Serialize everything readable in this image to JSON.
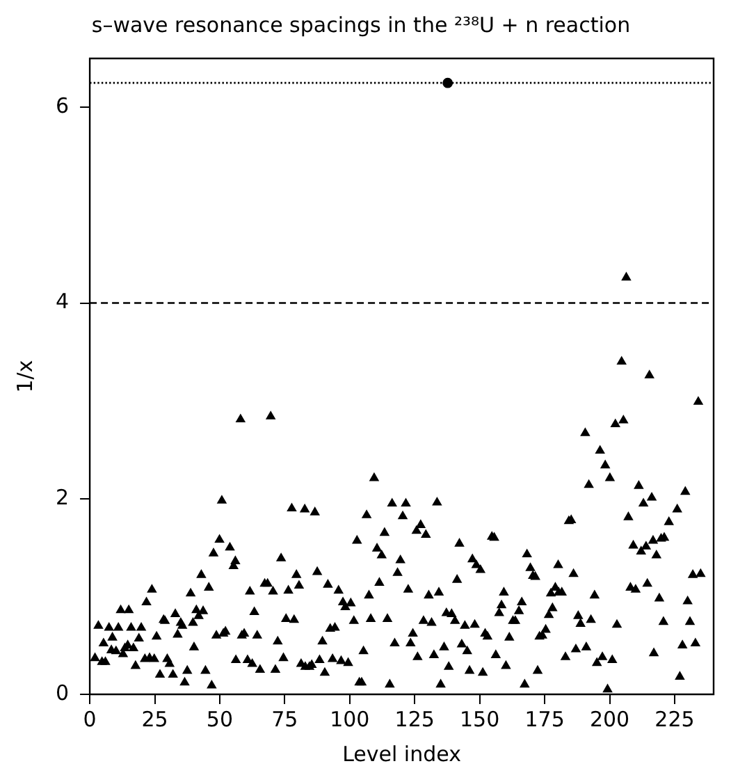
{
  "chart_data": {
    "type": "scatter",
    "title": "s–wave resonance spacings in the ²³⁸U + n reaction",
    "xlabel": "Level index",
    "ylabel": "1/x",
    "xlim": [
      0,
      240
    ],
    "xticks": [
      0,
      25,
      50,
      75,
      100,
      125,
      150,
      175,
      200,
      225
    ],
    "ylim": [
      0,
      6.5
    ],
    "yticks": [
      0,
      2,
      4,
      6
    ],
    "grid": false,
    "legend": false,
    "marker": "triangle",
    "ref_lines": [
      {
        "axis": "y",
        "value": 6.25,
        "line_style": "dotted",
        "color": "#000000"
      },
      {
        "axis": "y",
        "value": 4,
        "line_style": "dashed",
        "color": "#000000"
      }
    ],
    "series": [
      {
        "color": "#000000",
        "x": [
          2,
          3.3,
          4.7,
          6,
          5.3,
          7.4,
          8.7,
          8.3,
          10.1,
          11,
          11.9,
          12.8,
          13.5,
          15,
          14.6,
          15.9,
          16.8,
          17.6,
          18.9,
          19.8,
          21.8,
          21.2,
          23,
          23.9,
          24.8,
          25.7,
          27,
          28.4,
          28.9,
          29.8,
          30.7,
          32,
          32.9,
          33.8,
          35,
          35.6,
          36.5,
          37.5,
          38.8,
          39.7,
          40.1,
          41,
          41.9,
          42.9,
          43.6,
          44.5,
          45.8,
          46.9,
          47.6,
          48.7,
          49.9,
          50.8,
          51.4,
          52.2,
          53.9,
          55.3,
          56.2,
          58,
          69.6,
          56,
          58.5,
          59.4,
          60.7,
          61.6,
          62.5,
          63.3,
          64.4,
          65.5,
          67.3,
          68.4,
          70.5,
          71.4,
          72.3,
          73.6,
          74.5,
          75.5,
          76.4,
          77.7,
          78.6,
          79.5,
          80.5,
          81.3,
          82.7,
          82.9,
          84.5,
          85.4,
          86.6,
          87.5,
          88.4,
          89.5,
          90.4,
          91.6,
          92.5,
          94.3,
          93.4,
          95.7,
          96.7,
          97.4,
          98.3,
          100.4,
          99.4,
          101.6,
          102.8,
          103.7,
          104.6,
          105.3,
          106.5,
          107.4,
          108.1,
          109.4,
          110.5,
          112.3,
          111.4,
          113.4,
          114.5,
          115.4,
          116.3,
          117.3,
          118.4,
          119.5,
          120.4,
          121.6,
          133.6,
          127.3,
          125.7,
          129.3,
          122.5,
          124.3,
          123.4,
          126.1,
          128.4,
          131.5,
          130.4,
          134.3,
          132.4,
          135,
          136.3,
          137.2,
          139.2,
          138.1,
          140.5,
          141.3,
          142.2,
          143.1,
          144.3,
          145.2,
          146.1,
          147.2,
          148.7,
          150.3,
          148.1,
          151.2,
          152.1,
          153,
          154.7,
          155.6,
          156.2,
          157.5,
          158.4,
          159.3,
          160.1,
          161.4,
          162.8,
          163.7,
          165.1,
          166.2,
          167.3,
          168.2,
          169.5,
          170.5,
          171.4,
          172.3,
          173,
          174.1,
          175.4,
          176.6,
          178,
          177.4,
          179.1,
          180.4,
          181.6,
          180.2,
          183,
          184.3,
          206.4,
          204.6,
          215.3,
          234.1,
          202.2,
          205.3,
          190.6,
          196.3,
          198.3,
          200.1,
          192,
          211.2,
          229.1,
          213,
          216.2,
          226,
          207.2,
          185.2,
          222.8,
          209.1,
          212.1,
          214,
          216.7,
          219.8,
          221,
          218,
          186.1,
          232,
          235,
          208,
          210,
          214.5,
          194.2,
          219.1,
          230,
          187.9,
          188.8,
          192.8,
          202.8,
          220.7,
          230.9,
          187,
          191,
          195.1,
          197.2,
          201,
          217,
          228,
          233,
          227,
          199.2
        ],
        "values": [
          0.37,
          0.7,
          0.33,
          0.33,
          0.52,
          0.68,
          0.58,
          0.45,
          0.44,
          0.68,
          0.86,
          0.41,
          0.47,
          0.86,
          0.5,
          0.68,
          0.47,
          0.29,
          0.57,
          0.68,
          0.94,
          0.36,
          0.37,
          1.07,
          0.36,
          0.59,
          0.2,
          0.76,
          0.75,
          0.36,
          0.31,
          0.2,
          0.82,
          0.61,
          0.73,
          0.7,
          0.12,
          0.24,
          1.03,
          0.73,
          0.48,
          0.86,
          0.8,
          1.22,
          0.85,
          0.24,
          1.09,
          0.09,
          1.44,
          0.6,
          1.58,
          1.98,
          0.62,
          0.64,
          1.5,
          1.31,
          0.35,
          2.81,
          2.84,
          1.36,
          0.6,
          0.62,
          0.35,
          1.05,
          0.31,
          0.84,
          0.6,
          0.25,
          1.13,
          1.13,
          1.05,
          0.25,
          0.54,
          1.39,
          0.37,
          0.77,
          1.06,
          1.9,
          0.76,
          1.22,
          1.11,
          0.31,
          1.89,
          0.28,
          0.28,
          0.3,
          1.86,
          1.25,
          0.35,
          0.54,
          0.22,
          1.12,
          0.67,
          0.68,
          0.36,
          1.06,
          0.34,
          0.94,
          0.89,
          0.93,
          0.32,
          0.75,
          1.57,
          0.12,
          0.12,
          0.44,
          1.83,
          1.01,
          0.77,
          2.21,
          1.49,
          1.42,
          1.14,
          1.65,
          0.77,
          0.1,
          1.95,
          0.52,
          1.24,
          1.37,
          1.82,
          1.95,
          1.96,
          1.73,
          1.67,
          1.63,
          1.07,
          0.62,
          0.52,
          0.38,
          0.75,
          0.73,
          1.01,
          1.04,
          0.4,
          0.1,
          0.48,
          0.83,
          0.82,
          0.28,
          0.75,
          1.17,
          1.54,
          0.51,
          0.7,
          0.44,
          0.24,
          1.38,
          1.32,
          1.27,
          0.71,
          0.22,
          0.62,
          0.59,
          1.61,
          1.6,
          0.4,
          0.83,
          0.91,
          1.04,
          0.29,
          0.58,
          0.75,
          0.75,
          0.85,
          0.94,
          0.1,
          1.43,
          1.29,
          1.21,
          1.2,
          0.24,
          0.59,
          0.6,
          0.66,
          0.81,
          0.88,
          1.03,
          1.09,
          1.04,
          1.04,
          1.32,
          0.38,
          1.77,
          4.26,
          3.4,
          3.26,
          2.99,
          2.76,
          2.8,
          2.67,
          2.49,
          2.34,
          2.21,
          2.14,
          2.13,
          2.07,
          1.95,
          2.01,
          1.89,
          1.81,
          1.78,
          1.76,
          1.52,
          1.46,
          1.51,
          1.57,
          1.59,
          1.6,
          1.42,
          1.23,
          1.22,
          1.23,
          1.09,
          1.07,
          1.13,
          1.01,
          0.98,
          0.95,
          0.8,
          0.72,
          0.76,
          0.71,
          0.74,
          0.74,
          0.46,
          0.48,
          0.32,
          0.38,
          0.35,
          0.42,
          0.5,
          0.52,
          0.18,
          0.05
        ]
      },
      {
        "color": "#000000",
        "marker": "circle",
        "x": [
          137.7
        ],
        "values": [
          6.25
        ]
      }
    ]
  }
}
